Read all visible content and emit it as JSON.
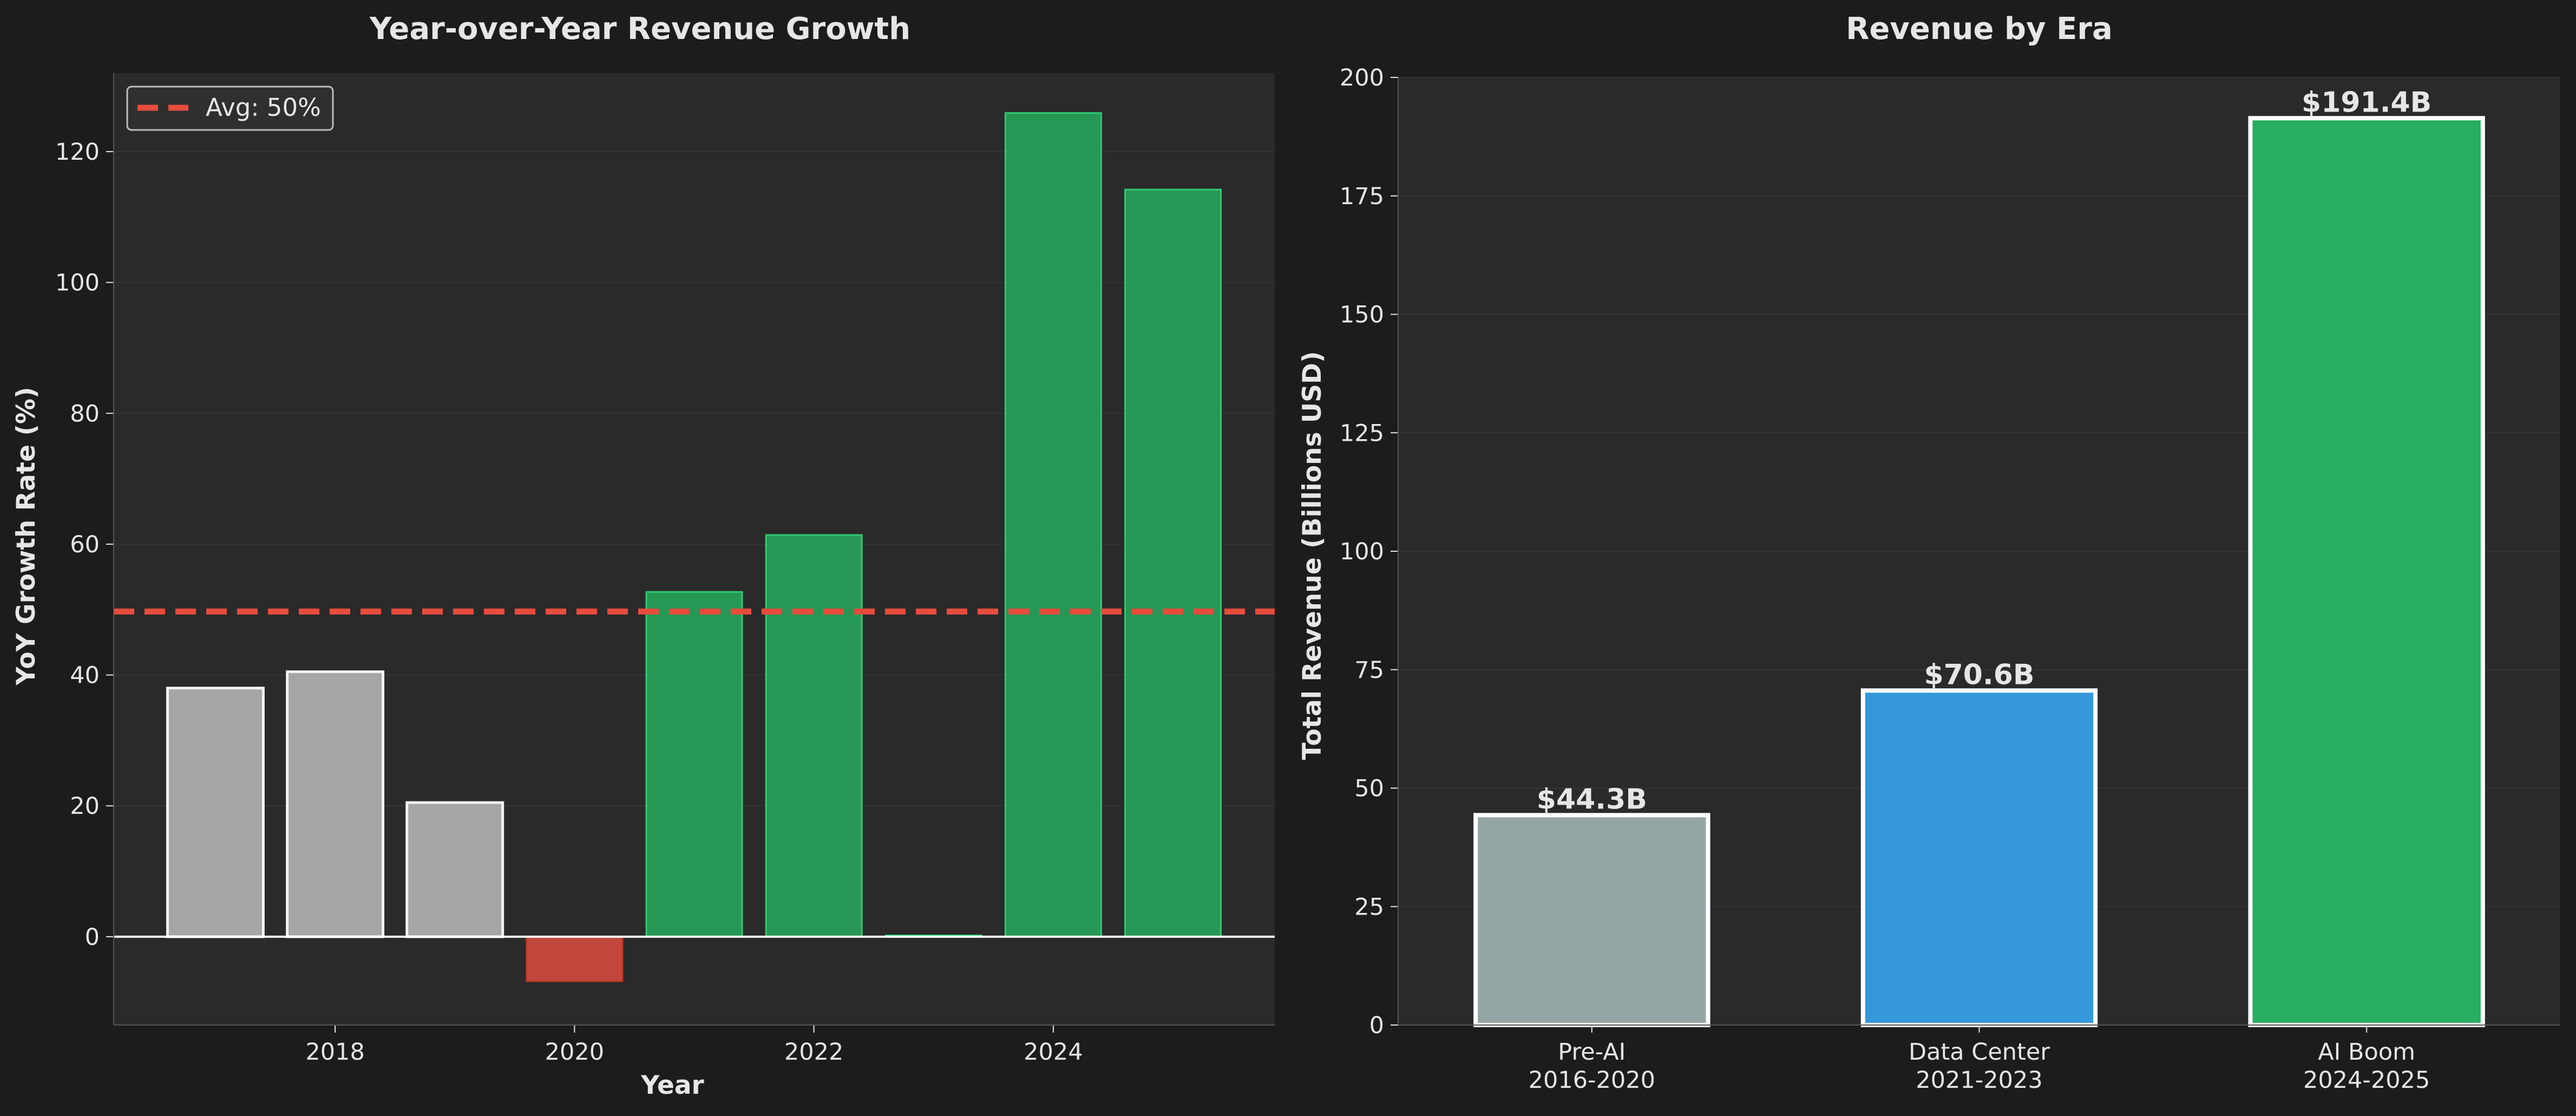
{
  "colors": {
    "figure_bg": "#1c1c1c",
    "axes_bg": "#2a2a2a",
    "text": "#e6e6e6",
    "grid": "#353535",
    "spine": "#555555",
    "avg_line": "#e74c3c",
    "pre_ai": "#a6a6a6",
    "decline": "#d24a3e",
    "growth": "#27a35a",
    "era_pre_ai": "#95a5a6",
    "era_data_center": "#3498db",
    "era_ai_boom": "#27ae60",
    "edge_white": "#f2f2f2"
  },
  "chart_data": [
    {
      "type": "bar",
      "title": "Year-over-Year Revenue Growth",
      "xlabel": "Year",
      "ylabel": "YoY Growth Rate (%)",
      "x": [
        2017,
        2018,
        2019,
        2020,
        2021,
        2022,
        2023,
        2024,
        2025
      ],
      "values": [
        38,
        40.5,
        20.5,
        -6.8,
        52.7,
        61.4,
        0.2,
        125.9,
        114.2
      ],
      "bar_colors": [
        "pre_ai",
        "pre_ai",
        "pre_ai",
        "decline",
        "growth",
        "growth",
        "growth",
        "growth",
        "growth"
      ],
      "xlim": [
        2016.15,
        2025.85
      ],
      "ylim": [
        -13.5,
        132
      ],
      "xticks": [
        2018,
        2020,
        2022,
        2024
      ],
      "yticks": [
        0,
        20,
        40,
        60,
        80,
        100,
        120
      ],
      "reference_line": {
        "y": 49.7,
        "style": "dashed",
        "color": "avg_line"
      },
      "legend": {
        "position": "top-left",
        "entries": [
          {
            "label": "Avg: 50%",
            "style": "dashed",
            "color": "avg_line"
          }
        ]
      },
      "grid": true
    },
    {
      "type": "bar",
      "title": "Revenue by Era",
      "xlabel": "",
      "ylabel": "Total Revenue (Billions USD)",
      "categories": [
        "Pre-AI\n2016-2020",
        "Data Center\n2021-2023",
        "AI Boom\n2024-2025"
      ],
      "values": [
        44.3,
        70.6,
        191.4
      ],
      "data_labels": [
        "$44.3B",
        "$70.6B",
        "$191.4B"
      ],
      "bar_colors": [
        "era_pre_ai",
        "era_data_center",
        "era_ai_boom"
      ],
      "ylim": [
        0,
        200
      ],
      "yticks": [
        0,
        25,
        50,
        75,
        100,
        125,
        150,
        175,
        200
      ],
      "grid": true
    }
  ]
}
